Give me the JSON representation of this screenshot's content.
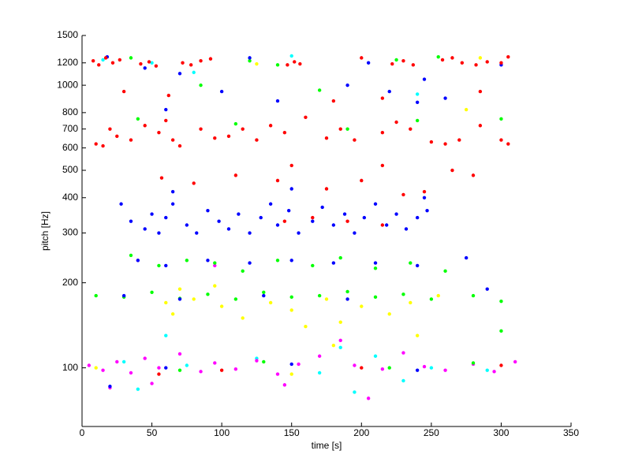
{
  "chart_data": {
    "type": "scatter",
    "x_label": "time [s]",
    "y_label": "pitch [Hz]",
    "log_y": true,
    "xlim": [
      0,
      350
    ],
    "xticks": [
      0,
      50,
      100,
      150,
      200,
      250,
      300,
      350
    ],
    "ylim": [
      62,
      1500
    ],
    "yticks": [
      100,
      200,
      300,
      400,
      500,
      600,
      700,
      800,
      1000,
      1200,
      1500
    ],
    "series": [
      {
        "color": "#ffff00",
        "x": [
          60,
          65,
          80,
          100,
          115,
          135,
          150,
          175,
          185,
          200,
          220,
          235,
          255,
          70,
          95,
          160,
          180,
          240,
          125,
          275,
          285,
          10,
          150
        ],
        "values": [
          170,
          155,
          175,
          165,
          150,
          170,
          160,
          175,
          145,
          165,
          155,
          170,
          180,
          190,
          195,
          140,
          120,
          130,
          1190,
          820,
          1250,
          100,
          95
        ]
      },
      {
        "color": "#00ffff",
        "x": [
          15,
          50,
          80,
          150,
          240,
          30,
          75,
          125,
          170,
          210,
          250,
          290,
          40,
          195,
          230,
          60,
          185
        ],
        "values": [
          1230,
          1200,
          1110,
          1270,
          930,
          105,
          102,
          108,
          96,
          110,
          100,
          98,
          84,
          82,
          90,
          130,
          118
        ]
      },
      {
        "color": "#ff00ff",
        "x": [
          5,
          15,
          25,
          35,
          45,
          55,
          70,
          85,
          95,
          110,
          125,
          140,
          155,
          170,
          185,
          195,
          215,
          230,
          245,
          260,
          280,
          295,
          310,
          20,
          50,
          145,
          205,
          40,
          95
        ],
        "values": [
          102,
          98,
          105,
          96,
          108,
          100,
          112,
          97,
          104,
          99,
          106,
          95,
          103,
          110,
          125,
          102,
          99,
          113,
          101,
          98,
          103,
          97,
          105,
          85,
          88,
          87,
          78,
          240,
          230
        ]
      },
      {
        "color": "#00ff00",
        "x": [
          35,
          120,
          140,
          225,
          255,
          40,
          110,
          190,
          240,
          300,
          85,
          170,
          35,
          55,
          75,
          95,
          115,
          140,
          165,
          185,
          210,
          235,
          260,
          10,
          30,
          50,
          70,
          90,
          110,
          130,
          150,
          170,
          190,
          210,
          230,
          250,
          280,
          300,
          70,
          130,
          220,
          280,
          300
        ],
        "values": [
          1250,
          1220,
          1180,
          1230,
          1260,
          760,
          730,
          700,
          750,
          760,
          1000,
          960,
          250,
          230,
          240,
          235,
          220,
          240,
          230,
          245,
          225,
          235,
          220,
          180,
          178,
          185,
          176,
          182,
          175,
          185,
          178,
          180,
          186,
          178,
          182,
          175,
          180,
          172,
          98,
          105,
          100,
          104,
          135
        ]
      },
      {
        "color": "#0000ff",
        "x": [
          18,
          45,
          70,
          120,
          205,
          245,
          300,
          100,
          140,
          190,
          220,
          240,
          260,
          60,
          28,
          35,
          45,
          50,
          55,
          60,
          65,
          75,
          82,
          90,
          98,
          105,
          112,
          120,
          128,
          135,
          140,
          148,
          155,
          165,
          172,
          180,
          188,
          195,
          202,
          210,
          218,
          225,
          232,
          240,
          247,
          65,
          150,
          245,
          40,
          60,
          90,
          120,
          150,
          180,
          210,
          240,
          275,
          30,
          70,
          130,
          190,
          290,
          60,
          150,
          240,
          20
        ],
        "values": [
          1260,
          1150,
          1100,
          1250,
          1200,
          1050,
          1180,
          950,
          880,
          1000,
          950,
          870,
          900,
          820,
          380,
          330,
          310,
          350,
          300,
          340,
          380,
          320,
          300,
          360,
          330,
          310,
          350,
          300,
          340,
          380,
          320,
          360,
          300,
          330,
          370,
          320,
          350,
          300,
          340,
          380,
          320,
          350,
          310,
          340,
          360,
          420,
          430,
          400,
          240,
          230,
          240,
          235,
          240,
          235,
          235,
          230,
          245,
          180,
          175,
          180,
          175,
          190,
          100,
          103,
          98,
          86
        ]
      },
      {
        "color": "#ff0000",
        "x": [
          8,
          12,
          17,
          22,
          27,
          42,
          48,
          53,
          72,
          78,
          85,
          92,
          147,
          152,
          156,
          200,
          222,
          230,
          237,
          258,
          265,
          272,
          282,
          290,
          300,
          305,
          10,
          15,
          20,
          25,
          35,
          45,
          55,
          60,
          65,
          70,
          85,
          95,
          105,
          115,
          125,
          135,
          145,
          160,
          175,
          185,
          195,
          215,
          225,
          235,
          250,
          260,
          270,
          285,
          300,
          305,
          30,
          62,
          180,
          215,
          285,
          57,
          80,
          110,
          140,
          150,
          175,
          200,
          215,
          245,
          265,
          280,
          230,
          165,
          190,
          215,
          145,
          100,
          200,
          300,
          55
        ],
        "values": [
          1220,
          1180,
          1250,
          1200,
          1230,
          1190,
          1210,
          1170,
          1200,
          1180,
          1220,
          1240,
          1180,
          1210,
          1190,
          1250,
          1190,
          1220,
          1180,
          1230,
          1250,
          1200,
          1180,
          1210,
          1200,
          1260,
          620,
          610,
          700,
          660,
          640,
          720,
          680,
          750,
          640,
          610,
          700,
          650,
          660,
          700,
          640,
          720,
          680,
          770,
          650,
          700,
          640,
          680,
          740,
          700,
          630,
          620,
          640,
          720,
          640,
          620,
          950,
          920,
          880,
          900,
          950,
          470,
          450,
          480,
          460,
          520,
          430,
          460,
          520,
          420,
          500,
          480,
          410,
          340,
          330,
          320,
          330,
          98,
          100,
          102,
          95
        ]
      }
    ]
  }
}
